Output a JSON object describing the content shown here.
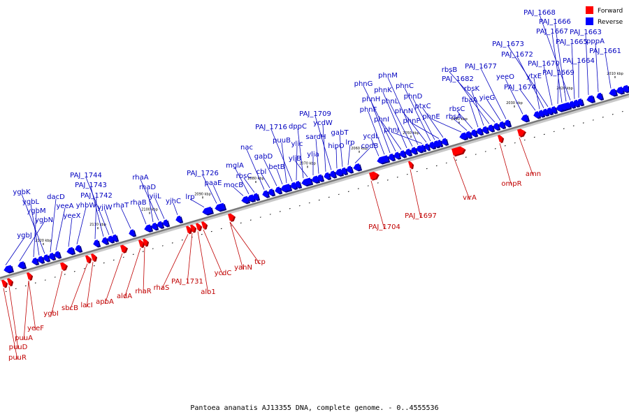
{
  "caption": "Pantoea ananatis AJ13355 DNA, complete genome. - 0..4555536",
  "colors": {
    "forward": "#ff0000",
    "forward_shadow": "#a00000",
    "reverse": "#0000ff",
    "reverse_shadow": "#000080",
    "axis": "#888888",
    "forward_text": "#c00000",
    "reverse_text": "#0000c0"
  },
  "legend": [
    {
      "label": "Forward",
      "strand": "forward"
    },
    {
      "label": "Reverse",
      "strand": "reverse"
    }
  ],
  "ticks": [
    "2120 kbp",
    "2110 kbp",
    "2100 kbp",
    "2090 kbp",
    "2080 kbp",
    "2070 kbp",
    "2060 kbp",
    "2050 kbp",
    "2040 kbp",
    "2030 kbp",
    "2020 kbp",
    "2010 kbp"
  ],
  "reverse_genes": [
    "ygbJ",
    "ygbN",
    "ygbM",
    "ygbL",
    "ygbK",
    "dacD",
    "yeeA",
    "yeeX",
    "yhbW",
    "PAJ_1742",
    "PAJ_1743",
    "PAJ_1744",
    "yjiW",
    "rhaT",
    "rhaB",
    "rhaD",
    "rhaA",
    "yiiL",
    "yjhC",
    "lrp",
    "PAJ_1726",
    "paaE",
    "mocB",
    "mglA",
    "rbsC",
    "nac",
    "cbl",
    "gabD",
    "betB",
    "puuB",
    "PAJ_1716",
    "ylic",
    "dppC",
    "yliB",
    "ylia",
    "sardH",
    "ycdW",
    "PAJ_1709",
    "hipO",
    "gabT",
    "lrp",
    "codB",
    "ycdL",
    "phnF",
    "phnH",
    "phnG",
    "phnI",
    "phnK",
    "phnL",
    "phnM",
    "phnJ",
    "phnN",
    "phnC",
    "phnD",
    "phnP",
    "ptxC",
    "phnE",
    "rbsA",
    "rbsC",
    "fbaA",
    "rbsK",
    "PAJ_1682",
    "rbsB",
    "yieG",
    "PAJ_1677",
    "yeeO",
    "PAJ_1674",
    "ytxE",
    "PAJ_1672",
    "PAJ_1673",
    "PAJ_1670",
    "PAJ_1669",
    "PAJ_1667",
    "PAJ_1666",
    "PAJ_1668",
    "PAJ_1665",
    "PAJ_1664",
    "PAJ_1663",
    "pppA",
    "PAJ_1661"
  ],
  "forward_genes": [
    "puuR",
    "puuD",
    "puuA",
    "yeeF",
    "ygbI",
    "sbcB",
    "lacI",
    "apbA",
    "aldA",
    "rhaR",
    "rhaS",
    "PAJ_1731",
    "alo1",
    "ycdC",
    "yahN",
    "tcp",
    "PAJ_1704",
    "PAJ_1697",
    "virA",
    "ompR",
    "amn"
  ]
}
